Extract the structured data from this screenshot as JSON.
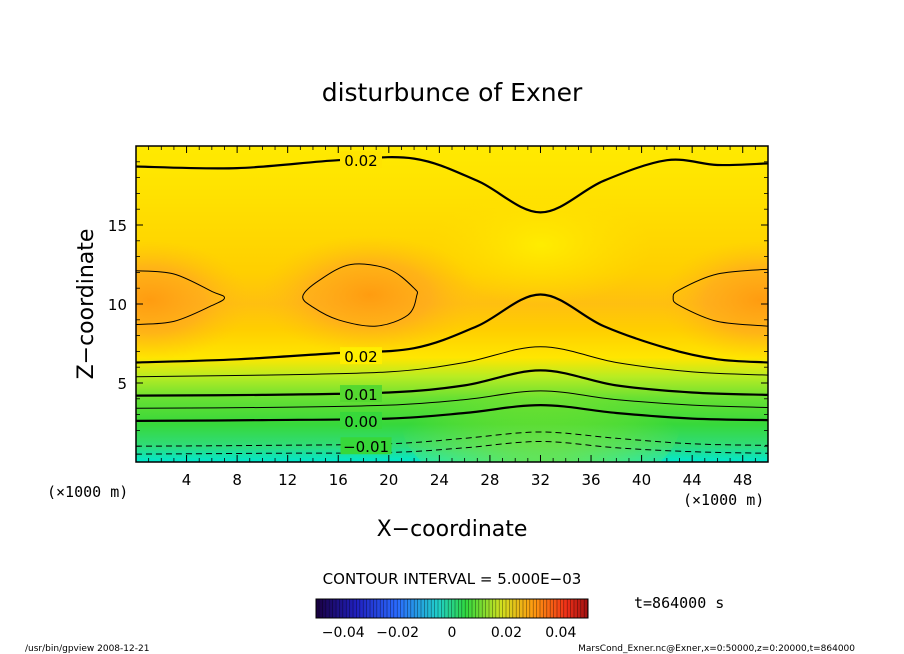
{
  "chart_data": {
    "type": "heatmap",
    "title": "disturbunce of Exner",
    "xlabel": "X−coordinate",
    "ylabel": "Z−coordinate",
    "x_unit_left": "(×1000 m)",
    "x_unit_right": "(×1000 m)",
    "xlim": [
      0,
      50
    ],
    "ylim": [
      0,
      20
    ],
    "x_ticks": [
      4,
      8,
      12,
      16,
      20,
      24,
      28,
      32,
      36,
      40,
      44,
      48
    ],
    "x_tick_labels": [
      "4",
      "8",
      "12",
      "16",
      "20",
      "24",
      "28",
      "32",
      "36",
      "40",
      "44",
      "48"
    ],
    "y_ticks": [
      5,
      10,
      15
    ],
    "y_tick_labels": [
      "5",
      "10",
      "15"
    ],
    "grid": false,
    "contour_interval_text": "CONTOUR INTERVAL = 5.000E−03",
    "time_text": "t=864000 s",
    "colorbar": {
      "range": [
        -0.05,
        0.05
      ],
      "tick_values": [
        -0.04,
        -0.02,
        0,
        0.02,
        0.04
      ],
      "tick_labels": [
        "−0.04",
        "−0.02",
        "0",
        "0.02",
        "0.04"
      ]
    },
    "contour_labels": [
      {
        "text": "0.02",
        "x": 17.8,
        "z": 19.1
      },
      {
        "text": "0.02",
        "x": 17.8,
        "z": 6.7
      },
      {
        "text": "0.01",
        "x": 17.8,
        "z": 4.3
      },
      {
        "text": "0.00",
        "x": 17.8,
        "z": 2.6
      },
      {
        "text": "−0.01",
        "x": 18.2,
        "z": 1.0
      }
    ],
    "levels": [
      {
        "value": -0.01,
        "dashed": true,
        "thick": false,
        "points": [
          [
            0,
            0.5
          ],
          [
            10,
            0.55
          ],
          [
            20,
            0.6
          ],
          [
            26,
            0.9
          ],
          [
            32,
            1.3
          ],
          [
            38,
            0.9
          ],
          [
            44,
            0.65
          ],
          [
            50,
            0.55
          ]
        ]
      },
      {
        "value": -0.005,
        "dashed": true,
        "thick": false,
        "points": [
          [
            0,
            1.0
          ],
          [
            10,
            1.05
          ],
          [
            20,
            1.15
          ],
          [
            26,
            1.5
          ],
          [
            32,
            1.9
          ],
          [
            38,
            1.5
          ],
          [
            44,
            1.15
          ],
          [
            50,
            1.05
          ]
        ]
      },
      {
        "value": 0.0,
        "dashed": false,
        "thick": true,
        "points": [
          [
            0,
            2.6
          ],
          [
            10,
            2.65
          ],
          [
            20,
            2.75
          ],
          [
            26,
            3.1
          ],
          [
            32,
            3.6
          ],
          [
            38,
            3.1
          ],
          [
            44,
            2.75
          ],
          [
            50,
            2.65
          ]
        ]
      },
      {
        "value": 0.005,
        "dashed": false,
        "thick": false,
        "points": [
          [
            0,
            3.4
          ],
          [
            10,
            3.45
          ],
          [
            20,
            3.6
          ],
          [
            26,
            3.95
          ],
          [
            32,
            4.5
          ],
          [
            38,
            3.95
          ],
          [
            44,
            3.6
          ],
          [
            50,
            3.45
          ]
        ]
      },
      {
        "value": 0.01,
        "dashed": false,
        "thick": true,
        "points": [
          [
            0,
            4.2
          ],
          [
            10,
            4.25
          ],
          [
            20,
            4.4
          ],
          [
            26,
            4.85
          ],
          [
            32,
            5.8
          ],
          [
            38,
            4.85
          ],
          [
            44,
            4.4
          ],
          [
            50,
            4.25
          ]
        ]
      },
      {
        "value": 0.015,
        "dashed": false,
        "thick": false,
        "points": [
          [
            0,
            5.4
          ],
          [
            10,
            5.5
          ],
          [
            20,
            5.7
          ],
          [
            26,
            6.3
          ],
          [
            32,
            7.3
          ],
          [
            38,
            6.3
          ],
          [
            44,
            5.7
          ],
          [
            50,
            5.5
          ]
        ]
      },
      {
        "value": 0.02,
        "dashed": false,
        "thick": true,
        "points": [
          [
            0,
            6.3
          ],
          [
            8,
            6.5
          ],
          [
            16,
            6.9
          ],
          [
            22,
            7.2
          ],
          [
            27,
            8.6
          ],
          [
            32,
            10.6
          ],
          [
            37,
            8.6
          ],
          [
            42,
            7.2
          ],
          [
            46,
            6.5
          ],
          [
            50,
            6.3
          ]
        ]
      },
      {
        "value": 0.02,
        "dashed": false,
        "thick": true,
        "points": [
          [
            0,
            18.7
          ],
          [
            8,
            18.6
          ],
          [
            16,
            19.1
          ],
          [
            22,
            19.2
          ],
          [
            27,
            17.8
          ],
          [
            32,
            15.8
          ],
          [
            37,
            17.8
          ],
          [
            42,
            19.1
          ],
          [
            46,
            18.8
          ],
          [
            50,
            18.9
          ]
        ]
      }
    ],
    "closed_contours": [
      {
        "value": 0.025,
        "points": [
          [
            0,
            12.1
          ],
          [
            3,
            11.9
          ],
          [
            6,
            10.8
          ],
          [
            7,
            10.4
          ],
          [
            6,
            9.9
          ],
          [
            3,
            8.9
          ],
          [
            0,
            8.7
          ]
        ]
      },
      {
        "value": 0.025,
        "points": [
          [
            13.2,
            10.5
          ],
          [
            14.5,
            11.5
          ],
          [
            17,
            12.5
          ],
          [
            20,
            12.2
          ],
          [
            22,
            11.0
          ],
          [
            22.2,
            10.5
          ],
          [
            21.5,
            9.3
          ],
          [
            19,
            8.6
          ],
          [
            16,
            9.0
          ],
          [
            14,
            9.8
          ]
        ]
      },
      {
        "value": 0.025,
        "points": [
          [
            50,
            12.2
          ],
          [
            46,
            11.9
          ],
          [
            43,
            10.9
          ],
          [
            42.5,
            10.4
          ],
          [
            43,
            9.9
          ],
          [
            46,
            8.9
          ],
          [
            50,
            8.6
          ]
        ]
      }
    ]
  },
  "footer_left": "/usr/bin/gpview   2008-12-21",
  "footer_right": "MarsCond_Exner.nc@Exner,x=0:50000,z=0:20000,t=864000",
  "colors": {
    "ink": "#000000",
    "low": "#00e5cc",
    "mid_green": "#33cc33",
    "yellow": "#ffee00",
    "orange": "#ffa500"
  }
}
